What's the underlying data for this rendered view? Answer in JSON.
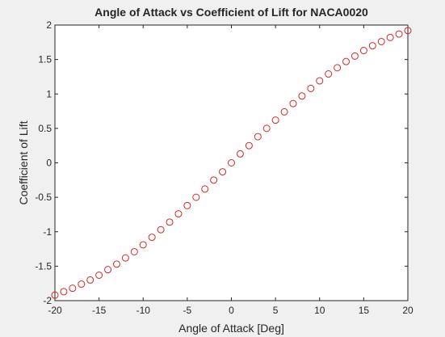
{
  "colors": {
    "background": "#f0f0f0",
    "plot_area": "#ffffff",
    "axis": "#262626",
    "marker": "#d62728"
  },
  "chart_data": {
    "type": "scatter",
    "title": "Angle of Attack vs Coefficient of Lift for NACA0020",
    "xlabel": "Angle of Attack [Deg]",
    "ylabel": "Coefficient of Lift",
    "xlim": [
      -20,
      20
    ],
    "ylim": [
      -2,
      2
    ],
    "xticks": [
      -20,
      -15,
      -10,
      -5,
      0,
      5,
      10,
      15,
      20
    ],
    "yticks": [
      -2,
      -1.5,
      -1,
      -0.5,
      0,
      0.5,
      1,
      1.5,
      2
    ],
    "xtick_labels": [
      "-20",
      "-15",
      "-10",
      "-5",
      "0",
      "5",
      "10",
      "15",
      "20"
    ],
    "ytick_labels": [
      "-2",
      "-1.5",
      "-1",
      "-0.5",
      "0",
      "0.5",
      "1",
      "1.5",
      "2"
    ],
    "grid": false,
    "marker": "circle-open",
    "series": [
      {
        "name": "Cl",
        "x": [
          -20,
          -19,
          -18,
          -17,
          -16,
          -15,
          -14,
          -13,
          -12,
          -11,
          -10,
          -9,
          -8,
          -7,
          -6,
          -5,
          -4,
          -3,
          -2,
          -1,
          0,
          1,
          2,
          3,
          4,
          5,
          6,
          7,
          8,
          9,
          10,
          11,
          12,
          13,
          14,
          15,
          16,
          17,
          18,
          19,
          20
        ],
        "y": [
          -1.92,
          -1.87,
          -1.82,
          -1.76,
          -1.7,
          -1.63,
          -1.55,
          -1.47,
          -1.38,
          -1.29,
          -1.19,
          -1.08,
          -0.97,
          -0.86,
          -0.74,
          -0.62,
          -0.5,
          -0.38,
          -0.25,
          -0.13,
          0.0,
          0.13,
          0.25,
          0.38,
          0.5,
          0.62,
          0.74,
          0.86,
          0.97,
          1.08,
          1.19,
          1.29,
          1.38,
          1.47,
          1.55,
          1.63,
          1.7,
          1.76,
          1.82,
          1.87,
          1.92
        ]
      }
    ]
  }
}
